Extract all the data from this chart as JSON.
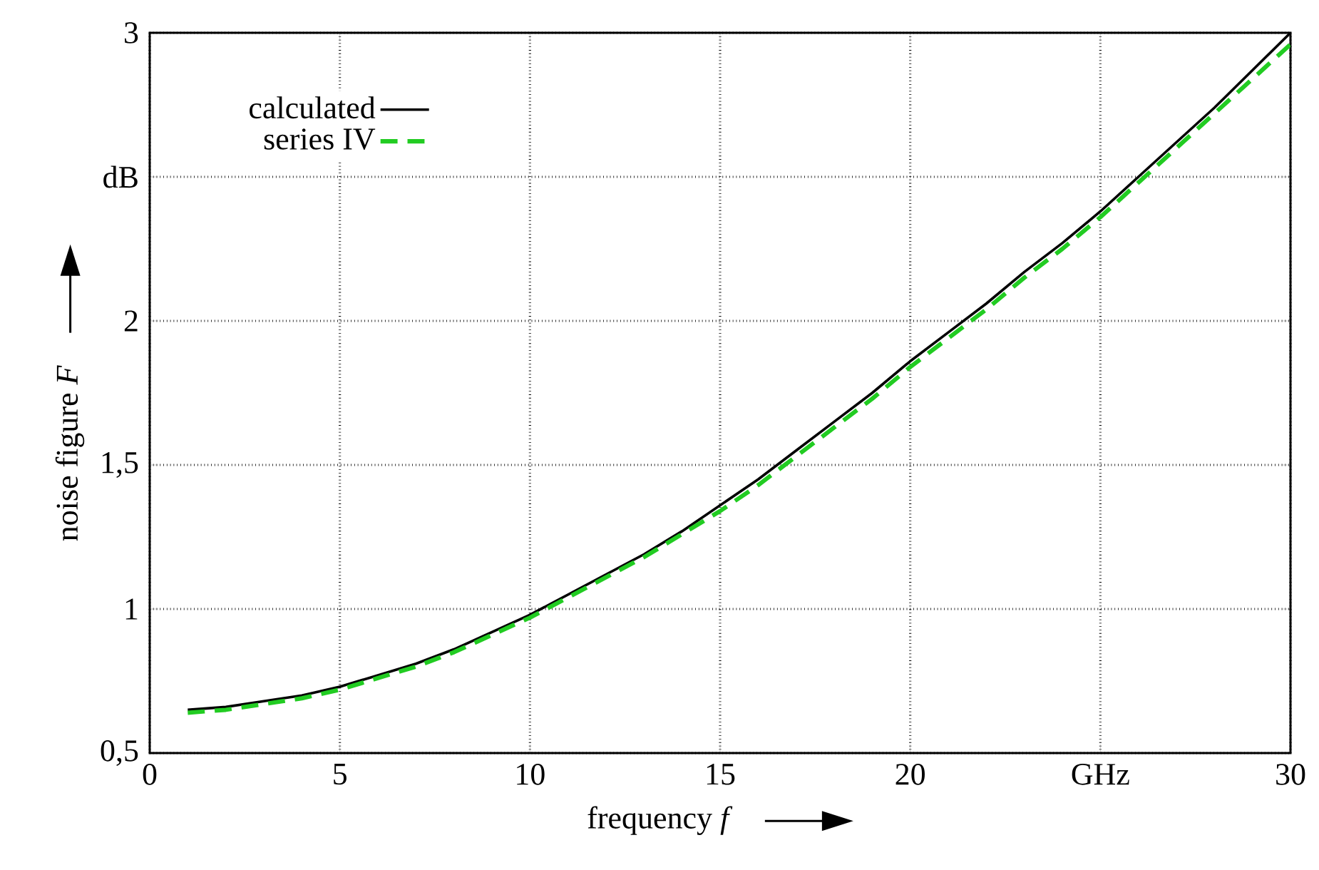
{
  "chart_data": {
    "type": "line",
    "xlabel": "frequency *f*",
    "ylabel": "noise figure *F*",
    "xlim": [
      0,
      30
    ],
    "ylim": [
      0.5,
      3
    ],
    "xticks": [
      0,
      5,
      10,
      15,
      20,
      {
        "value": 25,
        "label": "GHz"
      },
      30
    ],
    "yticks": [
      {
        "value": 0.5,
        "label": "0,5"
      },
      1,
      {
        "value": 1.5,
        "label": "1,5"
      },
      2,
      {
        "value": 2.5,
        "label": "dB"
      },
      3
    ],
    "grid": true,
    "legend": "top left",
    "x": [
      1,
      2,
      3,
      4,
      5,
      6,
      7,
      8,
      9,
      10,
      11,
      12,
      13,
      14,
      15,
      16,
      17,
      18,
      19,
      20,
      21,
      22,
      23,
      24,
      25,
      26,
      27,
      28,
      29,
      30
    ],
    "series": [
      {
        "name": "calculated",
        "color": "#000000",
        "line_style": "solid",
        "values": [
          0.65,
          0.66,
          0.68,
          0.7,
          0.73,
          0.77,
          0.81,
          0.86,
          0.92,
          0.98,
          1.05,
          1.12,
          1.19,
          1.27,
          1.36,
          1.45,
          1.55,
          1.65,
          1.75,
          1.86,
          1.96,
          2.06,
          2.17,
          2.27,
          2.38,
          2.5,
          2.62,
          2.74,
          2.87,
          3.0
        ]
      },
      {
        "name": "series IV",
        "color": "#22cc22",
        "line_style": "dashed",
        "values": [
          0.64,
          0.65,
          0.67,
          0.69,
          0.72,
          0.76,
          0.8,
          0.85,
          0.91,
          0.97,
          1.04,
          1.11,
          1.18,
          1.26,
          1.34,
          1.43,
          1.53,
          1.63,
          1.73,
          1.84,
          1.94,
          2.04,
          2.15,
          2.25,
          2.36,
          2.48,
          2.6,
          2.72,
          2.84,
          2.96
        ]
      }
    ]
  }
}
